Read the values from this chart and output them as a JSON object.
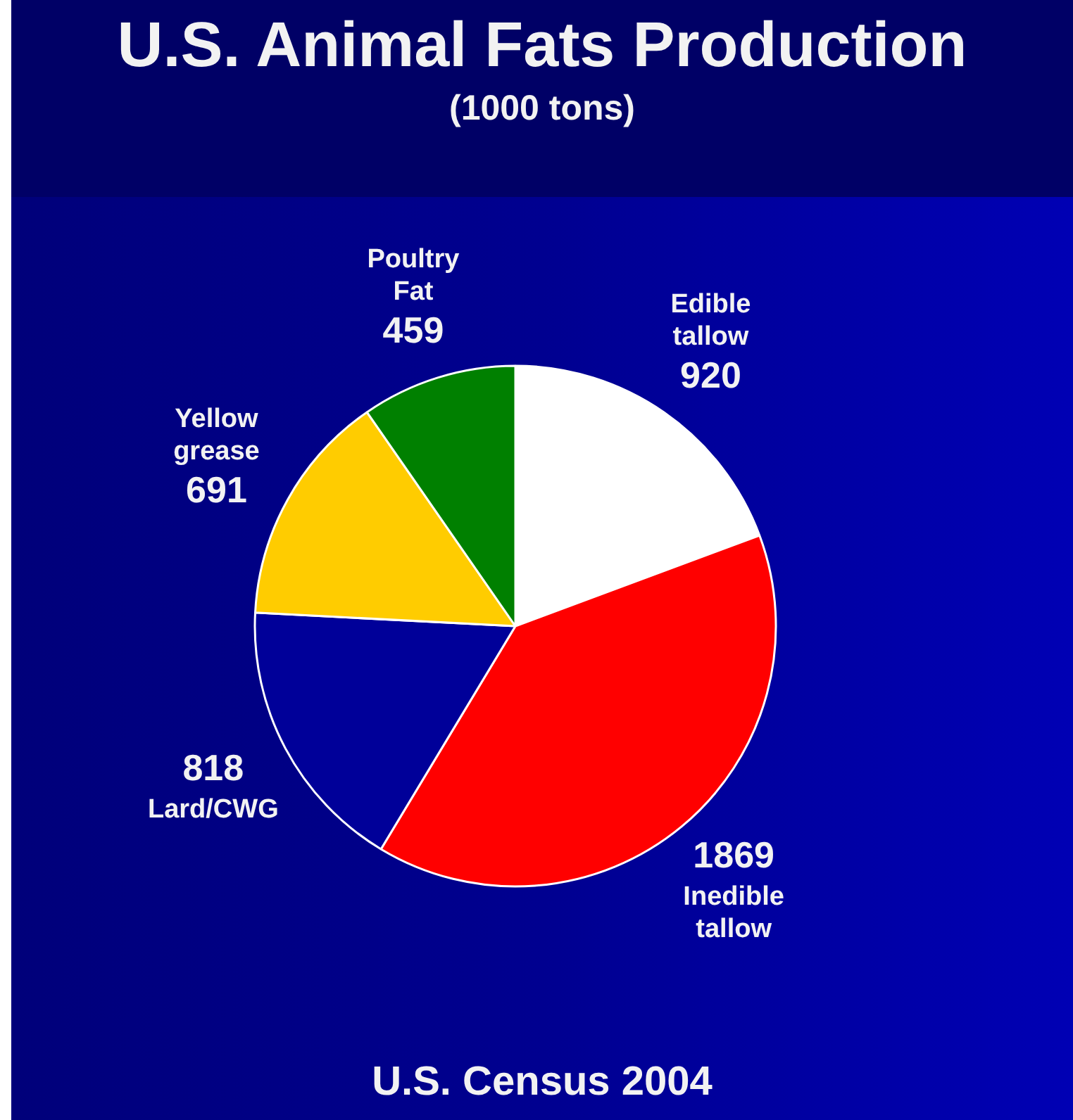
{
  "chart_data": {
    "type": "pie",
    "title": "U.S. Animal Fats Production",
    "subtitle": "(1000 tons)",
    "categories": [
      "Edible tallow",
      "Inedible tallow",
      "Lard/CWG",
      "Yellow grease",
      "Poultry Fat"
    ],
    "values": [
      920,
      1869,
      818,
      691,
      459
    ],
    "colors": [
      "#ffffff",
      "#ff0000",
      "#000099",
      "#ffcc00",
      "#008000"
    ],
    "data_labels": true,
    "annotations": [
      "U.S. Census 2004"
    ]
  }
}
